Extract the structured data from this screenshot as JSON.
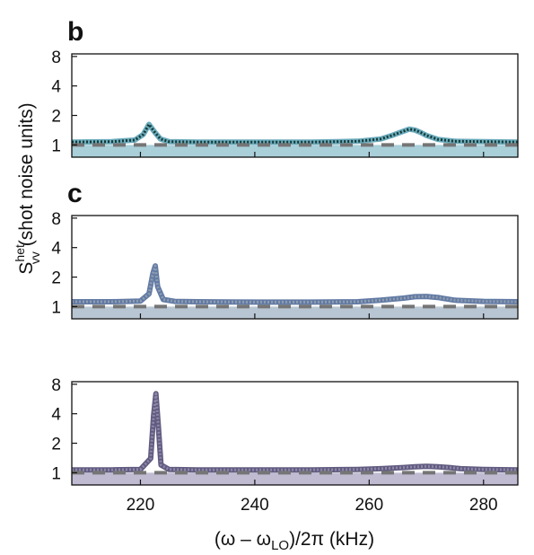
{
  "chart_data": {
    "type": "line",
    "xlabel_parts": {
      "open": "(ω – ω",
      "sub": "LO",
      "close": ")/2π (kHz)"
    },
    "ylabel_parts": {
      "base": "S",
      "sup": "het",
      "sub": "vv",
      "rest": " (shot noise units)"
    },
    "x_ticks": [
      220,
      240,
      260,
      280
    ],
    "x_range": [
      208,
      286
    ],
    "y_scale": "log",
    "y_ticks": [
      1,
      2,
      4,
      8
    ],
    "grid": false,
    "panels": [
      {
        "label": "b",
        "y_range": [
          0.75,
          8.5
        ],
        "fill_color": "#a9cfd9",
        "data_color": "#3a8fa6",
        "fit_color": "#143a38",
        "baseline": 1.0,
        "series": [
          {
            "name": "",
            "x": [
              208,
              215,
              219,
              220.5,
              221.5,
              222.5,
              223.5,
              225,
              230,
              240,
              250,
              258,
              262,
              264,
              266,
              267,
              268,
              269,
              270,
              272,
              275,
              280,
              286
            ],
            "y": [
              1.07,
              1.08,
              1.12,
              1.28,
              1.62,
              1.35,
              1.15,
              1.08,
              1.07,
              1.07,
              1.07,
              1.09,
              1.15,
              1.25,
              1.38,
              1.45,
              1.42,
              1.34,
              1.25,
              1.14,
              1.09,
              1.08,
              1.07
            ]
          }
        ]
      },
      {
        "label": "c",
        "y_range": [
          0.75,
          8.5
        ],
        "fill_color": "#b8c6d3",
        "data_color": "#2c4d86",
        "fit_color": "#8f9cb0",
        "baseline": 1.0,
        "series": [
          {
            "name": "",
            "x": [
              208,
              215,
              220,
              221.5,
              222.2,
              222.6,
              223.0,
              224,
              226,
              230,
              240,
              250,
              258,
              262,
              266,
              268,
              270,
              272,
              273,
              275,
              280,
              286
            ],
            "y": [
              1.12,
              1.12,
              1.14,
              1.35,
              2.2,
              2.6,
              1.6,
              1.18,
              1.13,
              1.12,
              1.11,
              1.11,
              1.12,
              1.16,
              1.22,
              1.26,
              1.27,
              1.24,
              1.21,
              1.16,
              1.13,
              1.12
            ]
          }
        ]
      },
      {
        "label": "",
        "y_range": [
          0.75,
          8.5
        ],
        "fill_color": "#c1bbd2",
        "data_color": "#2e2456",
        "fit_color": "#8d87a8",
        "baseline": 1.0,
        "series": [
          {
            "name": "",
            "x": [
              208,
              215,
              220,
              221.8,
              222.3,
              222.7,
              223.1,
              223.6,
              225,
              230,
              240,
              250,
              258,
              262,
              266,
              268,
              270,
              272,
              274,
              276,
              280,
              286
            ],
            "y": [
              1.07,
              1.07,
              1.08,
              1.4,
              3.8,
              6.4,
              3.2,
              1.2,
              1.08,
              1.07,
              1.07,
              1.07,
              1.08,
              1.1,
              1.13,
              1.15,
              1.16,
              1.15,
              1.13,
              1.1,
              1.08,
              1.07
            ]
          }
        ]
      }
    ]
  }
}
